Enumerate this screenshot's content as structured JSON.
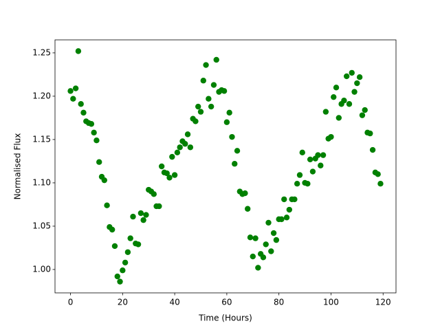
{
  "chart_data": {
    "type": "scatter",
    "xlabel": "Time (Hours)",
    "ylabel": "Normalised Flux",
    "color": "#008000",
    "x": [
      0,
      1,
      2,
      3,
      4,
      5,
      6,
      7,
      8,
      9,
      10,
      11,
      12,
      13,
      14,
      15,
      16,
      17,
      18,
      19,
      20,
      21,
      22,
      23,
      24,
      25,
      26,
      27,
      28,
      29,
      30,
      31,
      32,
      33,
      34,
      35,
      36,
      37,
      38,
      39,
      40,
      41,
      42,
      43,
      44,
      45,
      46,
      47,
      48,
      49,
      50,
      51,
      52,
      53,
      54,
      55,
      56,
      57,
      58,
      59,
      60,
      61,
      62,
      63,
      64,
      65,
      66,
      67,
      68,
      69,
      70,
      71,
      72,
      73,
      74,
      75,
      76,
      77,
      78,
      79,
      80,
      81,
      82,
      83,
      84,
      85,
      86,
      87,
      88,
      89,
      90,
      91,
      92,
      93,
      94,
      95,
      96,
      97,
      98,
      99,
      100,
      101,
      102,
      103,
      104,
      105,
      106,
      107,
      108,
      109,
      110,
      111,
      112,
      113,
      114,
      115,
      116,
      117,
      118,
      119
    ],
    "values": [
      1.206,
      1.197,
      1.209,
      1.252,
      1.191,
      1.181,
      1.171,
      1.169,
      1.168,
      1.158,
      1.149,
      1.124,
      1.107,
      1.103,
      1.074,
      1.049,
      1.046,
      1.027,
      0.992,
      0.986,
      0.999,
      1.008,
      1.02,
      1.036,
      1.061,
      1.03,
      1.029,
      1.065,
      1.057,
      1.063,
      1.092,
      1.09,
      1.087,
      1.073,
      1.073,
      1.119,
      1.112,
      1.111,
      1.106,
      1.13,
      1.109,
      1.135,
      1.141,
      1.148,
      1.145,
      1.156,
      1.141,
      1.174,
      1.171,
      1.188,
      1.182,
      1.218,
      1.236,
      1.197,
      1.188,
      1.213,
      1.242,
      1.205,
      1.207,
      1.206,
      1.17,
      1.181,
      1.153,
      1.122,
      1.137,
      1.09,
      1.087,
      1.088,
      1.07,
      1.037,
      1.015,
      1.036,
      1.002,
      1.018,
      1.014,
      1.029,
      1.054,
      1.021,
      1.042,
      1.034,
      1.058,
      1.058,
      1.081,
      1.06,
      1.069,
      1.081,
      1.081,
      1.099,
      1.109,
      1.135,
      1.1,
      1.099,
      1.127,
      1.113,
      1.128,
      1.132,
      1.12,
      1.132,
      1.182,
      1.151,
      1.153,
      1.199,
      1.21,
      1.175,
      1.191,
      1.195,
      1.223,
      1.191,
      1.227,
      1.205,
      1.215,
      1.222,
      1.178,
      1.184,
      1.158,
      1.157,
      1.138,
      1.112,
      1.11,
      1.099
    ],
    "xlim": [
      -5.95,
      124.95
    ],
    "ylim": [
      0.973,
      1.265
    ],
    "xticks": [
      0,
      20,
      40,
      60,
      80,
      100,
      120
    ],
    "yticks": [
      {
        "value": 1.0,
        "label": "1.00"
      },
      1.05,
      {
        "value": 1.1,
        "label": "1.10"
      },
      1.15,
      {
        "value": 1.2,
        "label": "1.20"
      },
      1.25
    ]
  }
}
